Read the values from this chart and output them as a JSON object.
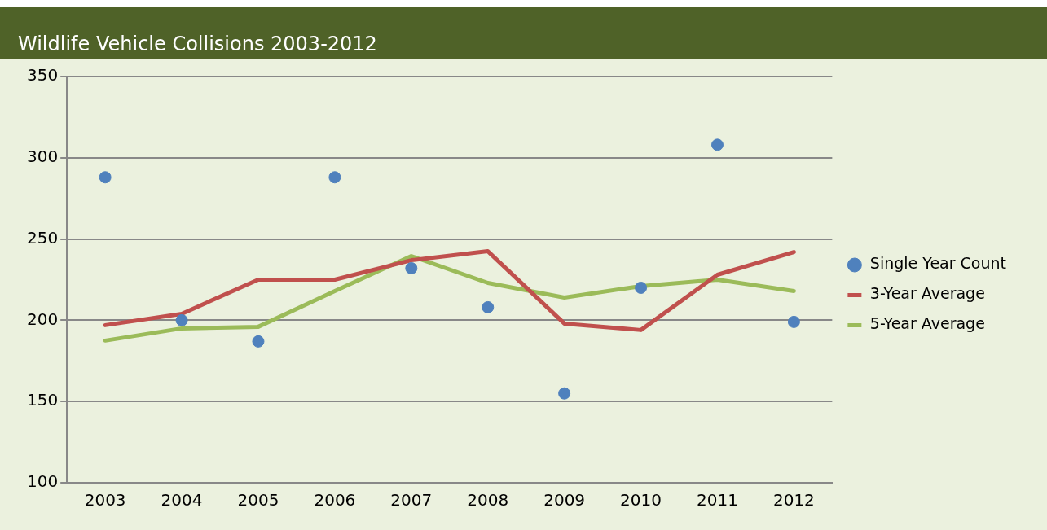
{
  "chart_data": {
    "type": "line",
    "title": "Wildlife Vehicle Collisions 2003-2012",
    "categories": [
      "2003",
      "2004",
      "2005",
      "2006",
      "2007",
      "2008",
      "2009",
      "2010",
      "2011",
      "2012"
    ],
    "series": [
      {
        "name": "Single Year Count",
        "type": "scatter",
        "marker": "circle",
        "color": "#4f81bd",
        "values": [
          288,
          200,
          187,
          288,
          232,
          208,
          155,
          220,
          308,
          199
        ]
      },
      {
        "name": "3-Year Average",
        "marker": "none",
        "color": "#c0504d",
        "values": [
          197,
          204,
          225,
          225,
          237,
          242.5,
          198,
          194,
          228,
          242
        ]
      },
      {
        "name": "5-Year Average",
        "marker": "none",
        "color": "#9bbb59",
        "values": [
          187.5,
          195,
          196,
          218,
          239.5,
          223,
          214,
          221,
          225,
          218
        ]
      }
    ],
    "ylim": [
      100,
      350
    ],
    "yticks": [
      100,
      150,
      200,
      250,
      300,
      350
    ],
    "grid": "y",
    "legend": "right"
  }
}
